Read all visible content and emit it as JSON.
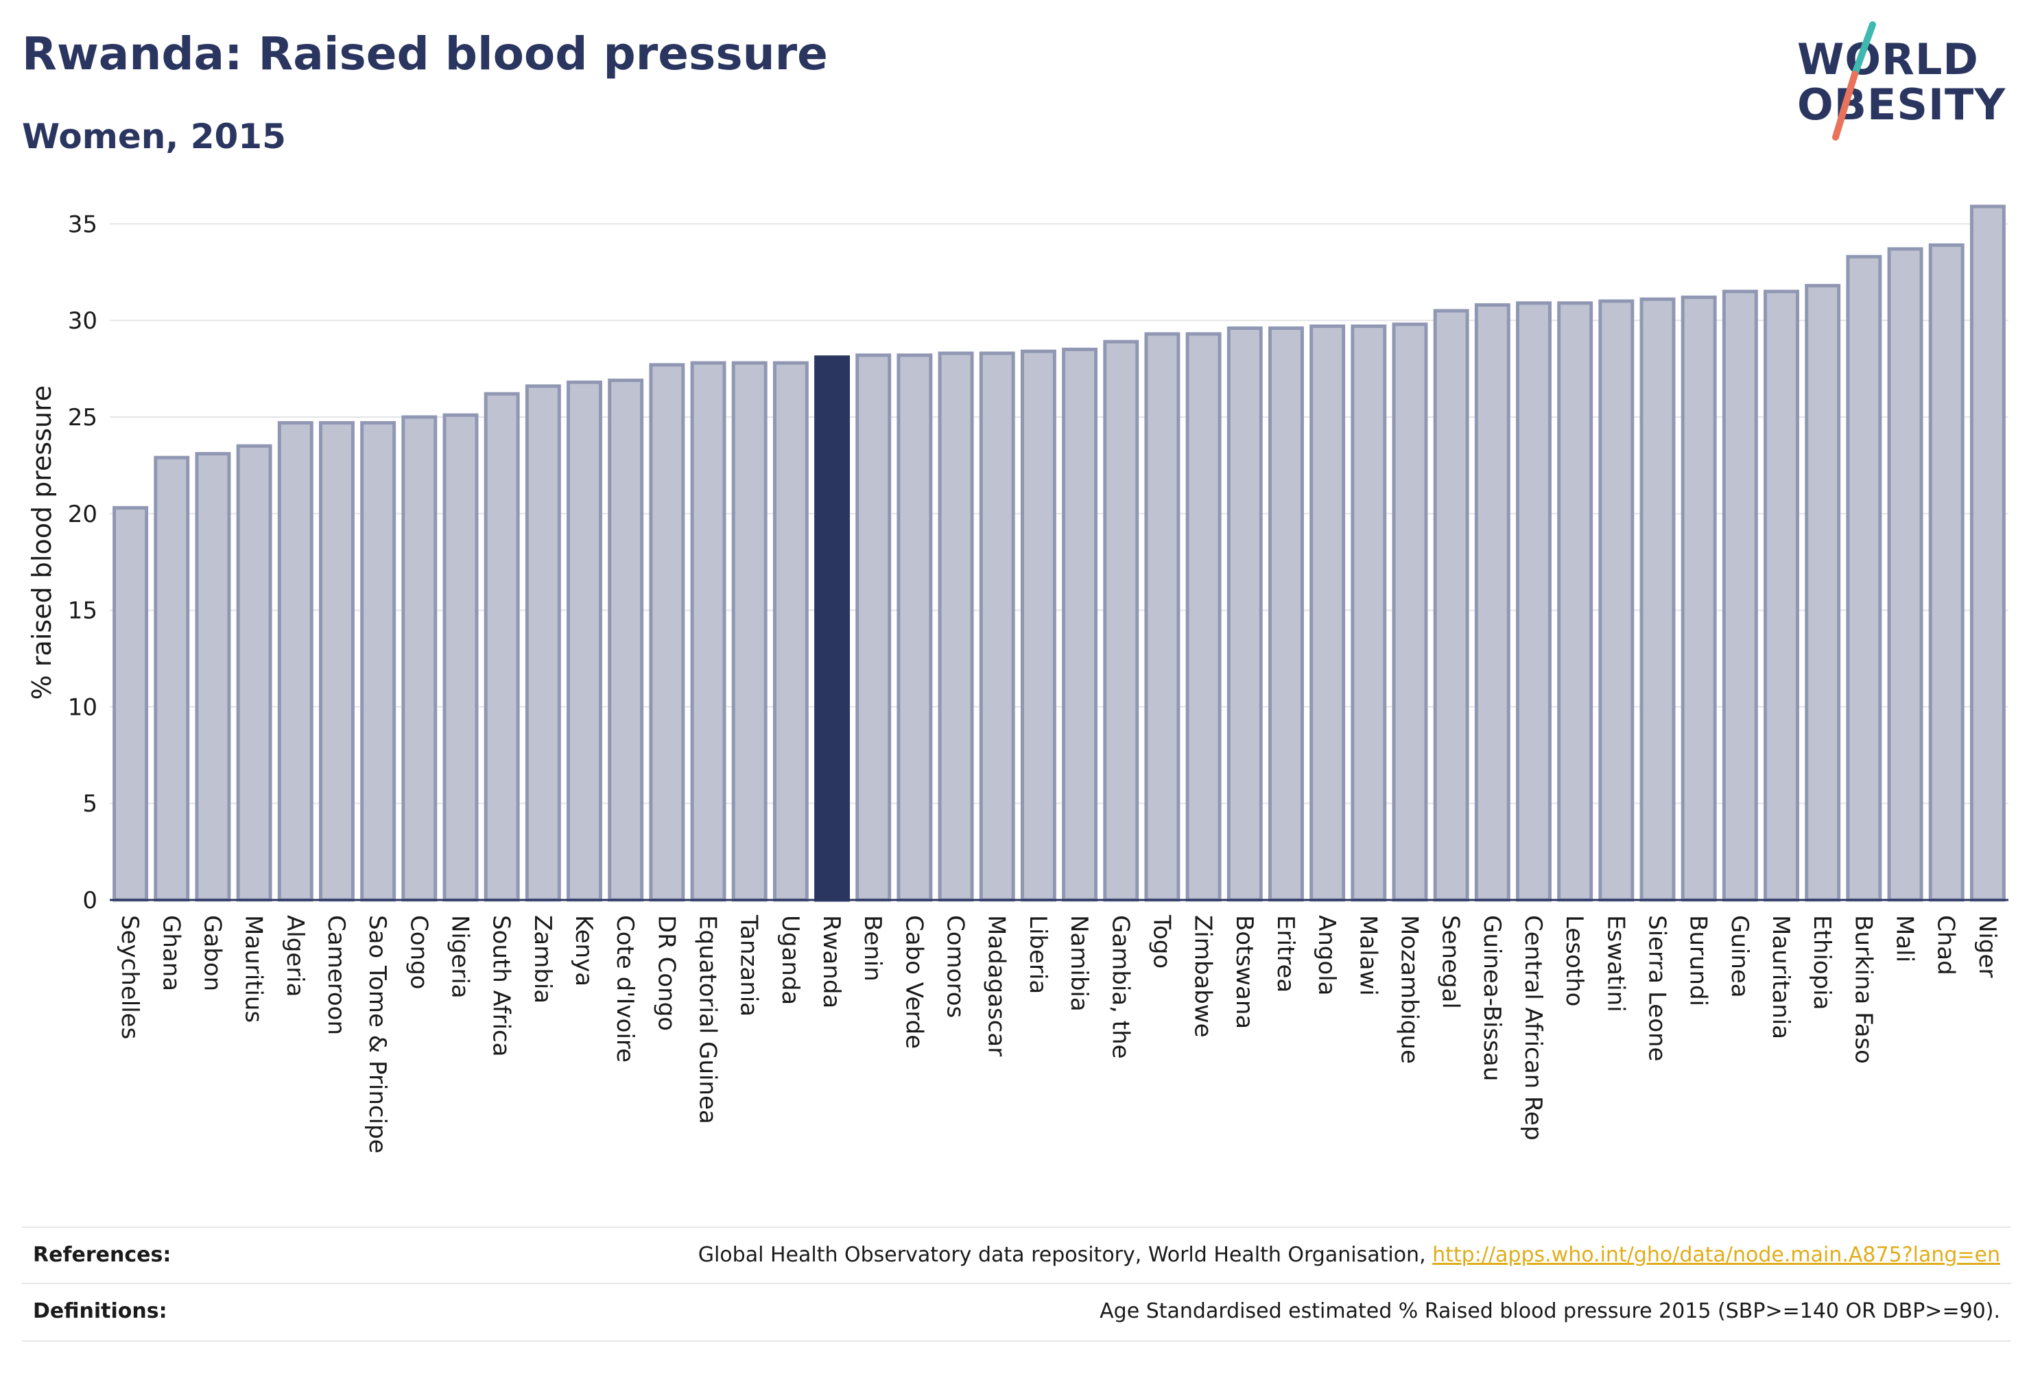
{
  "header": {
    "title": "Rwanda: Raised blood pressure",
    "subtitle": "Women, 2015"
  },
  "logo": {
    "line1": "WORLD",
    "line2": "OBESITY",
    "colors": {
      "text": "#2a3660",
      "slash_top": "#3fb8b0",
      "slash_bottom": "#e8735a"
    }
  },
  "chart_data": {
    "type": "bar",
    "title": "Rwanda: Raised blood pressure",
    "subtitle": "Women, 2015",
    "ylabel": "% raised blood pressure",
    "xlabel": "",
    "ylim": [
      0,
      37
    ],
    "yticks": [
      0,
      5,
      10,
      15,
      20,
      25,
      30,
      35
    ],
    "grid": true,
    "highlight": "Rwanda",
    "colors": {
      "bar": "#bfc3d1",
      "bar_edge": "#9097b3",
      "highlight": "#2a3660"
    },
    "categories": [
      "Seychelles",
      "Ghana",
      "Gabon",
      "Mauritius",
      "Algeria",
      "Cameroon",
      "Sao Tome & Principe",
      "Congo",
      "Nigeria",
      "South Africa",
      "Zambia",
      "Kenya",
      "Cote d'Ivoire",
      "DR Congo",
      "Equatorial Guinea",
      "Tanzania",
      "Uganda",
      "Rwanda",
      "Benin",
      "Cabo Verde",
      "Comoros",
      "Madagascar",
      "Liberia",
      "Namibia",
      "Gambia, the",
      "Togo",
      "Zimbabwe",
      "Botswana",
      "Eritrea",
      "Angola",
      "Malawi",
      "Mozambique",
      "Senegal",
      "Guinea-Bissau",
      "Central African Rep",
      "Lesotho",
      "Eswatini",
      "Sierra Leone",
      "Burundi",
      "Guinea",
      "Mauritania",
      "Ethiopia",
      "Burkina Faso",
      "Mali",
      "Chad",
      "Niger"
    ],
    "values": [
      20.3,
      22.9,
      23.1,
      23.5,
      24.7,
      24.7,
      24.7,
      25.0,
      25.1,
      26.2,
      26.6,
      26.8,
      26.9,
      27.7,
      27.8,
      27.8,
      27.8,
      28.1,
      28.2,
      28.2,
      28.3,
      28.3,
      28.4,
      28.5,
      28.9,
      29.3,
      29.3,
      29.6,
      29.6,
      29.7,
      29.7,
      29.8,
      30.5,
      30.8,
      30.9,
      30.9,
      31.0,
      31.1,
      31.2,
      31.5,
      31.5,
      31.8,
      33.3,
      33.7,
      33.9,
      35.9
    ]
  },
  "footer": {
    "references_label": "References:",
    "references_text": "Global Health Observatory data repository, World Health Organisation, ",
    "references_link": "http://apps.who.int/gho/data/node.main.A875?lang=en",
    "definitions_label": "Definitions:",
    "definitions_text": "Age Standardised estimated % Raised blood pressure 2015 (SBP>=140 OR DBP>=90)."
  }
}
